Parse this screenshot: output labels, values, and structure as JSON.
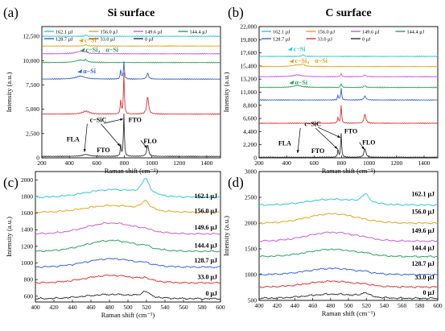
{
  "chart_data": [
    {
      "panel_letter": "(a)",
      "type": "line",
      "title": "Si surface",
      "xlabel": "Raman shift (cm⁻¹)",
      "ylabel": "Intensity (a.u.)",
      "xlim": [
        200,
        1500
      ],
      "ylim": [
        0,
        13500
      ],
      "xticks": [
        200,
        400,
        600,
        800,
        1000,
        1200,
        1400
      ],
      "yticks": [
        0,
        2500,
        5000,
        7500,
        10000,
        12500
      ],
      "ytick_labels": [
        "0",
        "2,500",
        "5,000",
        "7,500",
        "10,000",
        "12,500"
      ],
      "legend": {
        "position": "top",
        "entries": [
          "162.1 μJ",
          "156.0 μJ",
          "149.6 μJ",
          "144.4 μJ",
          "128.7 μJ",
          "33.0 μJ",
          "0 μJ"
        ]
      },
      "series": [
        {
          "name": "162.1 μJ",
          "color": "#2ec6d8",
          "baseline": 12500,
          "peaks": [
            {
              "x": 520,
              "h": 150,
              "w": 8
            }
          ]
        },
        {
          "name": "156.0 μJ",
          "color": "#e3a415",
          "baseline": 11500,
          "peaks": [
            {
              "x": 520,
              "h": 150,
              "w": 8
            }
          ]
        },
        {
          "name": "149.6 μJ",
          "color": "#c85ad0",
          "baseline": 10700,
          "peaks": [
            {
              "x": 480,
              "h": 250,
              "w": 40
            },
            {
              "x": 520,
              "h": 120,
              "w": 8
            }
          ]
        },
        {
          "name": "144.4 μJ",
          "color": "#2aa05a",
          "baseline": 9800,
          "peaks": [
            {
              "x": 480,
              "h": 250,
              "w": 40
            },
            {
              "x": 520,
              "h": 200,
              "w": 8
            }
          ]
        },
        {
          "name": "128.7 μJ",
          "color": "#2f62d8",
          "baseline": 8100,
          "peaks": [
            {
              "x": 480,
              "h": 300,
              "w": 40
            },
            {
              "x": 774,
              "h": 1000,
              "w": 4
            },
            {
              "x": 797,
              "h": 1800,
              "w": 4
            },
            {
              "x": 970,
              "h": 600,
              "w": 8
            }
          ]
        },
        {
          "name": "33.0 μJ",
          "color": "#e03030",
          "baseline": 4500,
          "peaks": [
            {
              "x": 520,
              "h": 300,
              "w": 30
            },
            {
              "x": 774,
              "h": 1500,
              "w": 4
            },
            {
              "x": 797,
              "h": 4200,
              "w": 4
            },
            {
              "x": 970,
              "h": 1800,
              "w": 8
            }
          ]
        },
        {
          "name": "0 μJ",
          "color": "#303030",
          "baseline": 150,
          "peaks": [
            {
              "x": 520,
              "h": 200,
              "w": 30
            },
            {
              "x": 774,
              "h": 1200,
              "w": 4
            },
            {
              "x": 797,
              "h": 4400,
              "w": 4
            },
            {
              "x": 970,
              "h": 1200,
              "w": 8
            }
          ]
        }
      ],
      "annotations": [
        {
          "text": "c−Si",
          "x": 510,
          "y": 11900,
          "color": "#e3a415"
        },
        {
          "text": "c−Si， α−Si",
          "x": 520,
          "y": 10900,
          "color": "#2aa05a"
        },
        {
          "text": "α−Si",
          "x": 500,
          "y": 8700,
          "color": "#2f62d8"
        },
        {
          "text": "c−SiC",
          "x": 550,
          "y": 3700,
          "color": "#000000"
        },
        {
          "text": "FLA",
          "x": 380,
          "y": 1700,
          "color": "#000000"
        },
        {
          "text": "FTO",
          "x": 600,
          "y": 600,
          "color": "#000000"
        },
        {
          "text": "FTO",
          "x": 830,
          "y": 3700,
          "color": "#000000"
        },
        {
          "text": "FLO",
          "x": 940,
          "y": 1500,
          "color": "#000000"
        }
      ],
      "arrows": [
        {
          "from": [
            530,
            3500
          ],
          "to": [
            510,
            600
          ]
        },
        {
          "from": [
            630,
            3500
          ],
          "to": [
            770,
            1200
          ]
        },
        {
          "from": [
            650,
            3550
          ],
          "to": [
            792,
            4000
          ]
        },
        {
          "from": [
            920,
            1800
          ],
          "to": [
            965,
            1000
          ]
        }
      ],
      "frame": {
        "l": 52,
        "t": 33,
        "w": 222,
        "h": 163
      }
    },
    {
      "panel_letter": "(b)",
      "type": "line",
      "title": "C surface",
      "xlabel": "Raman shift (cm⁻¹)",
      "ylabel": "Intensity (a.u.)",
      "xlim": [
        200,
        1500
      ],
      "ylim": [
        0,
        22000
      ],
      "xticks": [
        200,
        400,
        600,
        800,
        1000,
        1200,
        1400
      ],
      "yticks": [
        0,
        2200,
        4400,
        6600,
        8800,
        11000,
        13200,
        15400,
        17600,
        19800,
        22000
      ],
      "ytick_labels": [
        "0",
        "2,200",
        "4,400",
        "6,600",
        "8,800",
        "11,000",
        "13,200",
        "15,400",
        "17,600",
        "19,800",
        "22,000"
      ],
      "legend": {
        "position": "top",
        "entries": [
          "162.1 μJ",
          "156.0 μJ",
          "149.6 μJ",
          "144.4 μJ",
          "128.7 μJ",
          "33.0 μJ",
          "0 μJ"
        ]
      },
      "series": [
        {
          "name": "162.1 μJ",
          "color": "#2ec6d8",
          "baseline": 17000,
          "peaks": [
            {
              "x": 520,
              "h": 300,
              "w": 8
            }
          ]
        },
        {
          "name": "156.0 μJ",
          "color": "#e3a415",
          "baseline": 15300,
          "peaks": [
            {
              "x": 480,
              "h": 300,
              "w": 40
            },
            {
              "x": 520,
              "h": 300,
              "w": 8
            }
          ]
        },
        {
          "name": "149.6 μJ",
          "color": "#c85ad0",
          "baseline": 13600,
          "peaks": [
            {
              "x": 480,
              "h": 300,
              "w": 40
            },
            {
              "x": 797,
              "h": 500,
              "w": 5
            },
            {
              "x": 970,
              "h": 300,
              "w": 8
            }
          ]
        },
        {
          "name": "144.4 μJ",
          "color": "#2aa05a",
          "baseline": 11800,
          "peaks": [
            {
              "x": 480,
              "h": 300,
              "w": 40
            },
            {
              "x": 797,
              "h": 600,
              "w": 5
            },
            {
              "x": 970,
              "h": 300,
              "w": 8
            }
          ]
        },
        {
          "name": "128.7 μJ",
          "color": "#2f62d8",
          "baseline": 9700,
          "peaks": [
            {
              "x": 774,
              "h": 800,
              "w": 4
            },
            {
              "x": 797,
              "h": 2000,
              "w": 4
            },
            {
              "x": 970,
              "h": 700,
              "w": 8
            }
          ]
        },
        {
          "name": "33.0 μJ",
          "color": "#e03030",
          "baseline": 5800,
          "peaks": [
            {
              "x": 774,
              "h": 1000,
              "w": 4
            },
            {
              "x": 797,
              "h": 3000,
              "w": 4
            },
            {
              "x": 970,
              "h": 1500,
              "w": 8
            }
          ]
        },
        {
          "name": "0 μJ",
          "color": "#303030",
          "baseline": 100,
          "peaks": [
            {
              "x": 774,
              "h": 1300,
              "w": 4
            },
            {
              "x": 797,
              "h": 4000,
              "w": 4
            },
            {
              "x": 970,
              "h": 1500,
              "w": 8
            }
          ]
        }
      ],
      "annotations": [
        {
          "text": "c−Si",
          "x": 450,
          "y": 17900,
          "color": "#2ec6d8"
        },
        {
          "text": "c−Si， α−Si",
          "x": 460,
          "y": 15900,
          "color": "#e3a415"
        },
        {
          "text": "α−Si",
          "x": 460,
          "y": 12300,
          "color": "#2aa05a"
        },
        {
          "text": "c−SiC",
          "x": 530,
          "y": 5300,
          "color": "#000000"
        },
        {
          "text": "FLA",
          "x": 340,
          "y": 2100,
          "color": "#000000"
        },
        {
          "text": "FTO",
          "x": 580,
          "y": 800,
          "color": "#000000"
        },
        {
          "text": "FTO",
          "x": 820,
          "y": 4100,
          "color": "#000000"
        },
        {
          "text": "FLO",
          "x": 950,
          "y": 2200,
          "color": "#000000"
        }
      ],
      "arrows": [
        {
          "from": [
            500,
            5000
          ],
          "to": [
            480,
            800
          ]
        },
        {
          "from": [
            610,
            5000
          ],
          "to": [
            770,
            1500
          ]
        },
        {
          "from": [
            630,
            5100
          ],
          "to": [
            792,
            3400
          ]
        },
        {
          "from": [
            930,
            2600
          ],
          "to": [
            965,
            1400
          ]
        }
      ],
      "frame": {
        "l": 322,
        "t": 33,
        "w": 222,
        "h": 163
      }
    },
    {
      "panel_letter": "(c)",
      "type": "line",
      "xlabel": "Raman shift (cm⁻¹)",
      "ylabel": "Intensity (a.u.)",
      "xlim": [
        400,
        600
      ],
      "ylim": [
        530,
        2100
      ],
      "xticks": [
        400,
        420,
        440,
        460,
        480,
        500,
        520,
        540,
        560,
        580,
        600
      ],
      "yticks": [
        600,
        800,
        1000,
        1200,
        1400,
        1600,
        1800,
        2000
      ],
      "ytick_labels": [
        "600",
        "800",
        "1000",
        "1200",
        "1400",
        "1600",
        "1800",
        "2000"
      ],
      "series": [
        {
          "name": "162.1 μJ",
          "color": "#2ec6d8",
          "baseline": 1790,
          "broad": 90,
          "sharp": 190
        },
        {
          "name": "156.0 μJ",
          "color": "#e3a415",
          "baseline": 1610,
          "broad": 80,
          "sharp": 110
        },
        {
          "name": "149.6 μJ",
          "color": "#c85ad0",
          "baseline": 1350,
          "broad": 130,
          "sharp": 20
        },
        {
          "name": "144.4 μJ",
          "color": "#2aa05a",
          "baseline": 1140,
          "broad": 130,
          "sharp": 25
        },
        {
          "name": "128.7 μJ",
          "color": "#2f62d8",
          "baseline": 950,
          "broad": 100,
          "sharp": 20
        },
        {
          "name": "33.0 μJ",
          "color": "#e03030",
          "baseline": 760,
          "broad": 90,
          "sharp": 30
        },
        {
          "name": "0 μJ",
          "color": "#303030",
          "baseline": 570,
          "broad": 50,
          "sharp": 70
        }
      ],
      "labels": [
        {
          "text": "162.1 μJ",
          "y": 1780
        },
        {
          "text": "156.0 μJ",
          "y": 1600
        },
        {
          "text": "149.6 μJ",
          "y": 1400
        },
        {
          "text": "144.4 μJ",
          "y": 1185
        },
        {
          "text": "128.7 μJ",
          "y": 1005
        },
        {
          "text": "33.0 μJ",
          "y": 808
        },
        {
          "text": "0 μJ",
          "y": 608
        }
      ],
      "frame": {
        "l": 44,
        "t": 213,
        "w": 230,
        "h": 162
      }
    },
    {
      "panel_letter": "(d)",
      "type": "line",
      "xlabel": "Raman shift (cm⁻¹)",
      "ylabel": "Intensity (a.u.)",
      "xlim": [
        400,
        600
      ],
      "ylim": [
        500,
        3000
      ],
      "xticks": [
        400,
        420,
        440,
        460,
        480,
        500,
        520,
        540,
        560,
        580,
        600
      ],
      "yticks": [
        500,
        1000,
        1500,
        2000,
        2500,
        3000
      ],
      "ytick_labels": [
        "500",
        "1000",
        "1500",
        "2000",
        "2500",
        "3000"
      ],
      "series": [
        {
          "name": "162.1 μJ",
          "color": "#2ec6d8",
          "baseline": 2350,
          "broad": 110,
          "sharp": 170
        },
        {
          "name": "156.0 μJ",
          "color": "#e3a415",
          "baseline": 2000,
          "broad": 180,
          "sharp": 0
        },
        {
          "name": "149.6 μJ",
          "color": "#c85ad0",
          "baseline": 1650,
          "broad": 170,
          "sharp": 20
        },
        {
          "name": "144.4 μJ",
          "color": "#2aa05a",
          "baseline": 1350,
          "broad": 140,
          "sharp": 20
        },
        {
          "name": "128.7 μJ",
          "color": "#2f62d8",
          "baseline": 1000,
          "broad": 120,
          "sharp": 20
        },
        {
          "name": "33.0 μJ",
          "color": "#e03030",
          "baseline": 760,
          "broad": 110,
          "sharp": 20
        },
        {
          "name": "0 μJ",
          "color": "#303030",
          "baseline": 540,
          "broad": 80,
          "sharp": 80
        }
      ],
      "labels": [
        {
          "text": "162.1 μJ",
          "y": 2520
        },
        {
          "text": "156.0 μJ",
          "y": 2180
        },
        {
          "text": "149.6 μJ",
          "y": 1810
        },
        {
          "text": "144.4 μJ",
          "y": 1480
        },
        {
          "text": "128.7 μJ",
          "y": 1170
        },
        {
          "text": "33.0 μJ",
          "y": 910
        },
        {
          "text": "0 μJ",
          "y": 610
        }
      ],
      "frame": {
        "l": 322,
        "t": 213,
        "w": 222,
        "h": 160
      }
    }
  ]
}
